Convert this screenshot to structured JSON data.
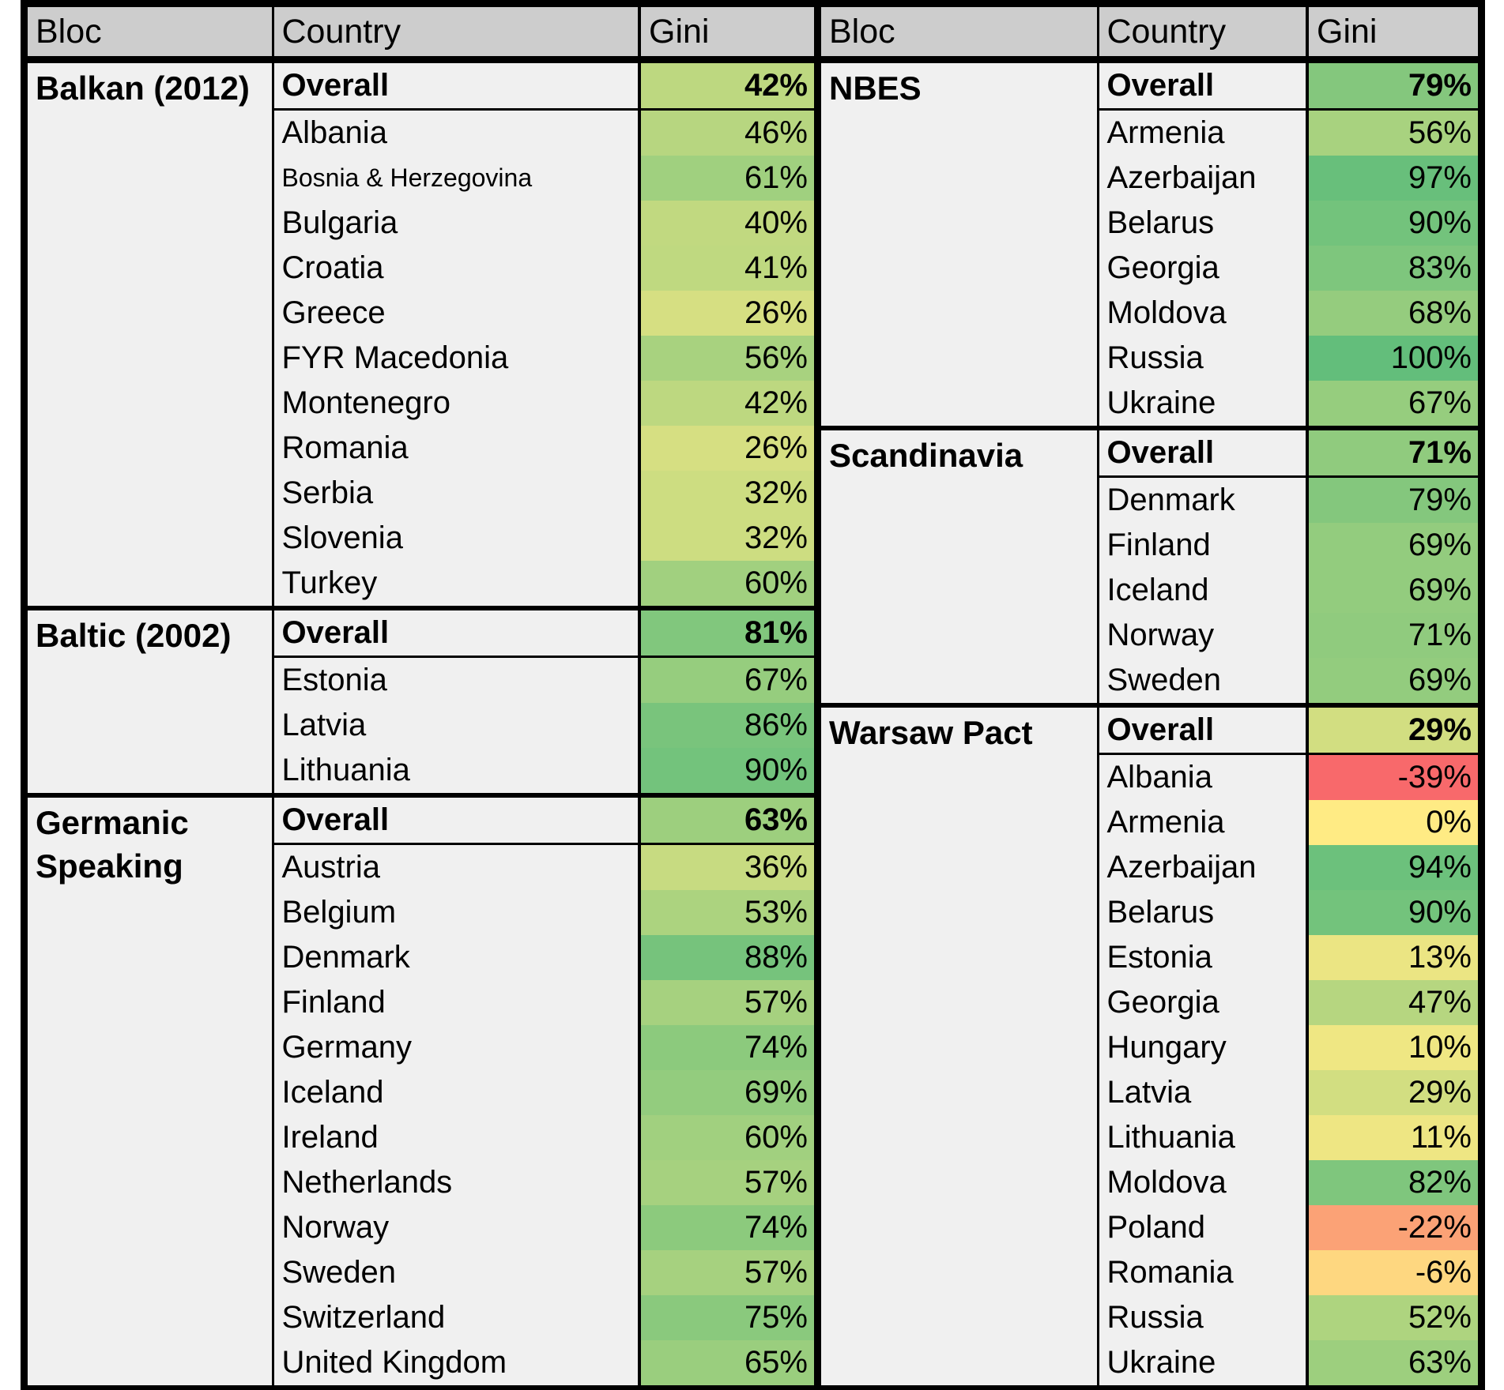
{
  "colors": {
    "page_bg": "#FFFFFF",
    "header_bg": "#CDCDCD",
    "cell_bg": "#F0F0F0",
    "border": "#000000"
  },
  "chart_data": {
    "type": "heatmap-table",
    "description": "Conditionally formatted spreadsheet table of Gini percentages by bloc and country, red-yellow-green color scale",
    "columns": [
      "Bloc",
      "Country",
      "Gini"
    ],
    "color_scale": {
      "min": -39,
      "mid": 0,
      "max": 100,
      "min_color": "#F8696B",
      "mid_color": "#FFEB84",
      "max_color": "#63BE7B"
    },
    "tables": [
      {
        "groups": [
          {
            "bloc": "Balkan (2012)",
            "rows": [
              {
                "country": "Overall",
                "gini": 42,
                "label": "42%",
                "overall": true
              },
              {
                "country": "Albania",
                "gini": 46,
                "label": "46%"
              },
              {
                "country": "Bosnia & Herzegovina",
                "gini": 61,
                "label": "61%",
                "small": true
              },
              {
                "country": "Bulgaria",
                "gini": 40,
                "label": "40%"
              },
              {
                "country": "Croatia",
                "gini": 41,
                "label": "41%"
              },
              {
                "country": "Greece",
                "gini": 26,
                "label": "26%"
              },
              {
                "country": "FYR Macedonia",
                "gini": 56,
                "label": "56%"
              },
              {
                "country": "Montenegro",
                "gini": 42,
                "label": "42%"
              },
              {
                "country": "Romania",
                "gini": 26,
                "label": "26%"
              },
              {
                "country": "Serbia",
                "gini": 32,
                "label": "32%"
              },
              {
                "country": "Slovenia",
                "gini": 32,
                "label": "32%"
              },
              {
                "country": "Turkey",
                "gini": 60,
                "label": "60%"
              }
            ]
          },
          {
            "bloc": "Baltic (2002)",
            "rows": [
              {
                "country": "Overall",
                "gini": 81,
                "label": "81%",
                "overall": true
              },
              {
                "country": "Estonia",
                "gini": 67,
                "label": "67%"
              },
              {
                "country": "Latvia",
                "gini": 86,
                "label": "86%"
              },
              {
                "country": "Lithuania",
                "gini": 90,
                "label": "90%"
              }
            ]
          },
          {
            "bloc": "Germanic Speaking",
            "rows": [
              {
                "country": "Overall",
                "gini": 63,
                "label": "63%",
                "overall": true
              },
              {
                "country": "Austria",
                "gini": 36,
                "label": "36%"
              },
              {
                "country": "Belgium",
                "gini": 53,
                "label": "53%"
              },
              {
                "country": "Denmark",
                "gini": 88,
                "label": "88%"
              },
              {
                "country": "Finland",
                "gini": 57,
                "label": "57%"
              },
              {
                "country": "Germany",
                "gini": 74,
                "label": "74%"
              },
              {
                "country": "Iceland",
                "gini": 69,
                "label": "69%"
              },
              {
                "country": "Ireland",
                "gini": 60,
                "label": "60%"
              },
              {
                "country": "Netherlands",
                "gini": 57,
                "label": "57%"
              },
              {
                "country": "Norway",
                "gini": 74,
                "label": "74%"
              },
              {
                "country": "Sweden",
                "gini": 57,
                "label": "57%"
              },
              {
                "country": "Switzerland",
                "gini": 75,
                "label": "75%"
              },
              {
                "country": "United Kingdom",
                "gini": 65,
                "label": "65%"
              }
            ]
          }
        ]
      },
      {
        "groups": [
          {
            "bloc": "NBES",
            "rows": [
              {
                "country": "Overall",
                "gini": 79,
                "label": "79%",
                "overall": true
              },
              {
                "country": "Armenia",
                "gini": 56,
                "label": "56%"
              },
              {
                "country": "Azerbaijan",
                "gini": 97,
                "label": "97%"
              },
              {
                "country": "Belarus",
                "gini": 90,
                "label": "90%"
              },
              {
                "country": "Georgia",
                "gini": 83,
                "label": "83%"
              },
              {
                "country": "Moldova",
                "gini": 68,
                "label": "68%"
              },
              {
                "country": "Russia",
                "gini": 100,
                "label": "100%"
              },
              {
                "country": "Ukraine",
                "gini": 67,
                "label": "67%"
              }
            ]
          },
          {
            "bloc": "Scandinavia",
            "rows": [
              {
                "country": "Overall",
                "gini": 71,
                "label": "71%",
                "overall": true
              },
              {
                "country": "Denmark",
                "gini": 79,
                "label": "79%"
              },
              {
                "country": "Finland",
                "gini": 69,
                "label": "69%"
              },
              {
                "country": "Iceland",
                "gini": 69,
                "label": "69%"
              },
              {
                "country": "Norway",
                "gini": 71,
                "label": "71%"
              },
              {
                "country": "Sweden",
                "gini": 69,
                "label": "69%"
              }
            ]
          },
          {
            "bloc": "Warsaw Pact",
            "rows": [
              {
                "country": "Overall",
                "gini": 29,
                "label": "29%",
                "overall": true
              },
              {
                "country": "Albania",
                "gini": -39,
                "label": "-39%"
              },
              {
                "country": "Armenia",
                "gini": 0,
                "label": "0%"
              },
              {
                "country": "Azerbaijan",
                "gini": 94,
                "label": "94%"
              },
              {
                "country": "Belarus",
                "gini": 90,
                "label": "90%"
              },
              {
                "country": "Estonia",
                "gini": 13,
                "label": "13%"
              },
              {
                "country": "Georgia",
                "gini": 47,
                "label": "47%"
              },
              {
                "country": "Hungary",
                "gini": 10,
                "label": "10%"
              },
              {
                "country": "Latvia",
                "gini": 29,
                "label": "29%"
              },
              {
                "country": "Lithuania",
                "gini": 11,
                "label": "11%"
              },
              {
                "country": "Moldova",
                "gini": 82,
                "label": "82%"
              },
              {
                "country": "Poland",
                "gini": -22,
                "label": "-22%"
              },
              {
                "country": "Romania",
                "gini": -6,
                "label": "-6%"
              },
              {
                "country": "Russia",
                "gini": 52,
                "label": "52%"
              },
              {
                "country": "Ukraine",
                "gini": 63,
                "label": "63%"
              }
            ]
          }
        ]
      }
    ]
  }
}
